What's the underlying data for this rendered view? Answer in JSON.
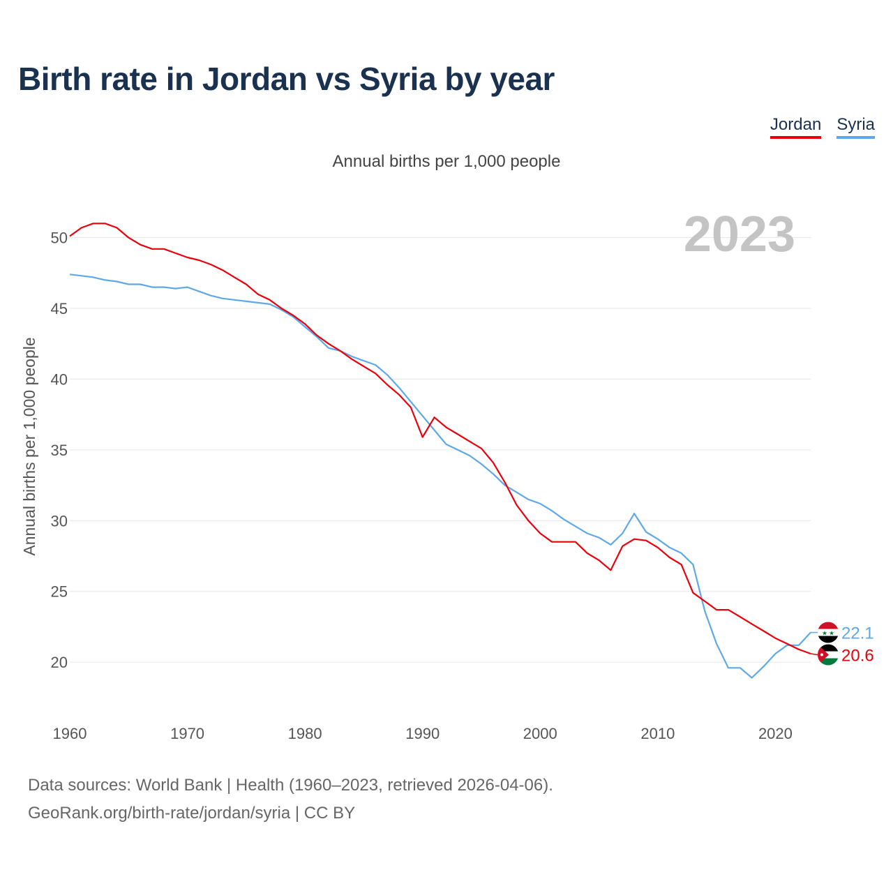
{
  "title": "Birth rate in Jordan vs Syria by year",
  "subtitle": "Annual births per 1,000 people",
  "source_line1": "Data sources: World Bank | Health (1960–2023, retrieved 2026-04-06).",
  "source_line2": "GeoRank.org/birth-rate/jordan/syria | CC BY",
  "year_label": "2023",
  "colors": {
    "jordan": "#e8000b",
    "syria": "#5fa8e8"
  },
  "legend": [
    {
      "name": "Jordan",
      "color": "#e8000b"
    },
    {
      "name": "Syria",
      "color": "#5fa8e8"
    }
  ],
  "chart_data": {
    "type": "line",
    "title": "Birth rate in Jordan vs Syria by year",
    "ylabel": "Annual births per 1,000 people",
    "xlabel": "",
    "xlim": [
      1960,
      2023
    ],
    "ylim": [
      17,
      52
    ],
    "xticks": [
      1960,
      1970,
      1980,
      1990,
      2000,
      2010,
      2020
    ],
    "yticks": [
      20,
      25,
      30,
      35,
      40,
      45,
      50
    ],
    "grid": true,
    "legend_position": "top-right",
    "x": [
      1960,
      1961,
      1962,
      1963,
      1964,
      1965,
      1966,
      1967,
      1968,
      1969,
      1970,
      1971,
      1972,
      1973,
      1974,
      1975,
      1976,
      1977,
      1978,
      1979,
      1980,
      1981,
      1982,
      1983,
      1984,
      1985,
      1986,
      1987,
      1988,
      1989,
      1990,
      1991,
      1992,
      1993,
      1994,
      1995,
      1996,
      1997,
      1998,
      1999,
      2000,
      2001,
      2002,
      2003,
      2004,
      2005,
      2006,
      2007,
      2008,
      2009,
      2010,
      2011,
      2012,
      2013,
      2014,
      2015,
      2016,
      2017,
      2018,
      2019,
      2020,
      2021,
      2022,
      2023
    ],
    "series": [
      {
        "name": "Jordan",
        "end_label": "20.6",
        "values": [
          50.1,
          50.7,
          51.0,
          51.0,
          50.7,
          50.0,
          49.5,
          49.2,
          49.2,
          48.9,
          48.6,
          48.4,
          48.1,
          47.7,
          47.2,
          46.7,
          46.0,
          45.6,
          45.0,
          44.5,
          43.9,
          43.1,
          42.5,
          42.0,
          41.4,
          40.9,
          40.4,
          39.6,
          38.9,
          38.0,
          35.9,
          37.3,
          36.6,
          36.1,
          35.6,
          35.1,
          34.1,
          32.7,
          31.1,
          30.0,
          29.1,
          28.5,
          28.5,
          28.5,
          27.7,
          27.2,
          26.5,
          28.2,
          28.7,
          28.6,
          28.1,
          27.4,
          26.9,
          24.9,
          24.3,
          23.7,
          23.7,
          23.2,
          22.7,
          22.2,
          21.7,
          21.3,
          20.9,
          20.6
        ]
      },
      {
        "name": "Syria",
        "end_label": "22.1",
        "values": [
          47.4,
          47.3,
          47.2,
          47.0,
          46.9,
          46.7,
          46.7,
          46.5,
          46.5,
          46.4,
          46.5,
          46.2,
          45.9,
          45.7,
          45.6,
          45.5,
          45.4,
          45.3,
          44.9,
          44.4,
          43.7,
          43.0,
          42.2,
          42.0,
          41.6,
          41.3,
          41.0,
          40.3,
          39.4,
          38.4,
          37.4,
          36.4,
          35.4,
          35.0,
          34.6,
          34.0,
          33.3,
          32.5,
          32.0,
          31.5,
          31.2,
          30.7,
          30.1,
          29.6,
          29.1,
          28.8,
          28.3,
          29.1,
          30.5,
          29.2,
          28.7,
          28.1,
          27.7,
          26.9,
          23.6,
          21.3,
          19.6,
          19.6,
          18.9,
          19.7,
          20.6,
          21.2,
          21.2,
          22.1
        ]
      }
    ]
  }
}
